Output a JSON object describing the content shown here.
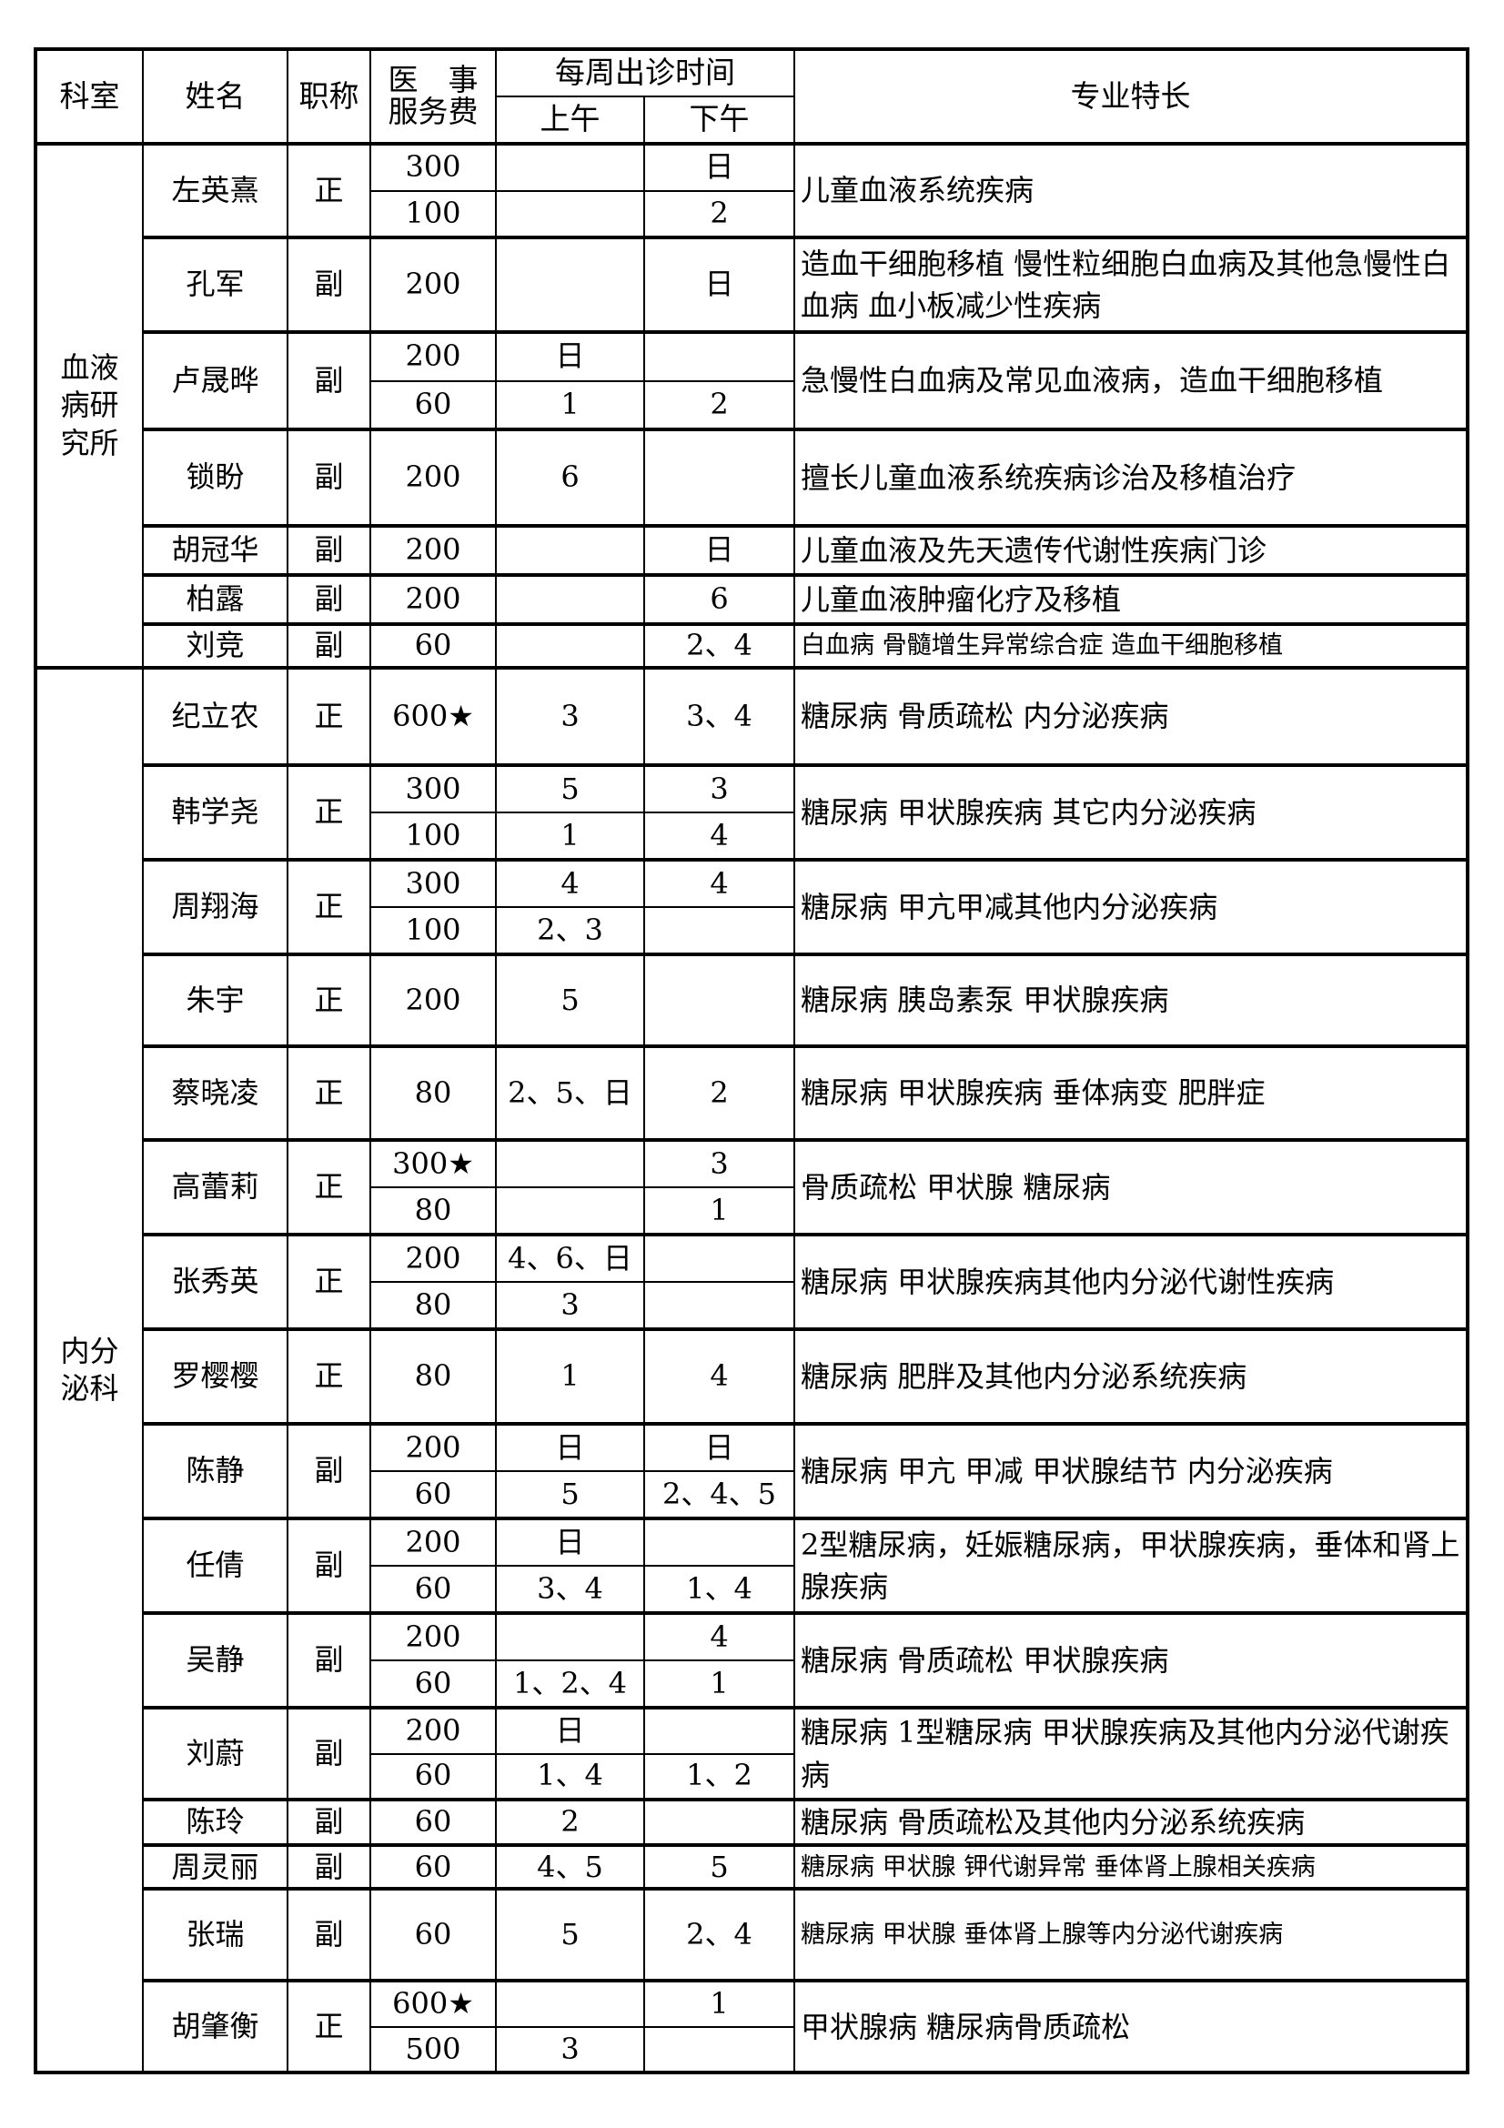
{
  "header": {
    "department": "科室",
    "name": "姓名",
    "title": "职称",
    "fee_line1": "医　事",
    "fee_line2": "服务费",
    "weekly_schedule": "每周出诊时间",
    "morning": "上午",
    "afternoon": "下午",
    "specialty": "专业特长"
  },
  "departments": [
    {
      "name": "血液病研究所",
      "doctors": [
        {
          "name": "左英熹",
          "title": "正",
          "sessions": [
            {
              "fee": "300",
              "am": "",
              "pm": "日"
            },
            {
              "fee": "100",
              "am": "",
              "pm": "2"
            }
          ],
          "specialty": "儿童血液系统疾病"
        },
        {
          "name": "孔军",
          "title": "副",
          "sessions": [
            {
              "fee": "200",
              "am": "",
              "pm": "日"
            }
          ],
          "specialty": "造血干细胞移植 慢性粒细胞白血病及其他急慢性白血病 血小板减少性疾病"
        },
        {
          "name": "卢晟晔",
          "title": "副",
          "sessions": [
            {
              "fee": "200",
              "am": "日",
              "pm": ""
            },
            {
              "fee": "60",
              "am": "1",
              "pm": "2"
            }
          ],
          "specialty": "急慢性白血病及常见血液病，造血干细胞移植"
        },
        {
          "name": "锁盼",
          "title": "副",
          "sessions": [
            {
              "fee": "200",
              "am": "6",
              "pm": ""
            }
          ],
          "specialty": "擅长儿童血液系统疾病诊治及移植治疗"
        },
        {
          "name": "胡冠华",
          "title": "副",
          "sessions": [
            {
              "fee": "200",
              "am": "",
              "pm": "日"
            }
          ],
          "specialty": "儿童血液及先天遗传代谢性疾病门诊"
        },
        {
          "name": "柏露",
          "title": "副",
          "sessions": [
            {
              "fee": "200",
              "am": "",
              "pm": "6"
            }
          ],
          "specialty": "儿童血液肿瘤化疗及移植"
        },
        {
          "name": "刘竞",
          "title": "副",
          "sessions": [
            {
              "fee": "60",
              "am": "",
              "pm": "2、4"
            }
          ],
          "specialty": "白血病 骨髓增生异常综合症 造血干细胞移植"
        }
      ]
    },
    {
      "name": "内分泌科",
      "doctors": [
        {
          "name": "纪立农",
          "title": "正",
          "sessions": [
            {
              "fee": "600★",
              "am": "3",
              "pm": "3、4"
            }
          ],
          "specialty": "糖尿病 骨质疏松 内分泌疾病"
        },
        {
          "name": "韩学尧",
          "title": "正",
          "sessions": [
            {
              "fee": "300",
              "am": "5",
              "pm": "3"
            },
            {
              "fee": "100",
              "am": "1",
              "pm": "4"
            }
          ],
          "specialty": "糖尿病 甲状腺疾病 其它内分泌疾病"
        },
        {
          "name": "周翔海",
          "title": "正",
          "sessions": [
            {
              "fee": "300",
              "am": "4",
              "pm": "4"
            },
            {
              "fee": "100",
              "am": "2、3",
              "pm": ""
            }
          ],
          "specialty": "糖尿病 甲亢甲减其他内分泌疾病"
        },
        {
          "name": "朱宇",
          "title": "正",
          "sessions": [
            {
              "fee": "200",
              "am": "5",
              "pm": ""
            }
          ],
          "specialty": "糖尿病 胰岛素泵 甲状腺疾病"
        },
        {
          "name": "蔡晓凌",
          "title": "正",
          "sessions": [
            {
              "fee": "80",
              "am": "2、5、日",
              "pm": "2"
            }
          ],
          "specialty": "糖尿病 甲状腺疾病 垂体病变 肥胖症"
        },
        {
          "name": "高蕾莉",
          "title": "正",
          "sessions": [
            {
              "fee": "300★",
              "am": "",
              "pm": "3"
            },
            {
              "fee": "80",
              "am": "",
              "pm": "1"
            }
          ],
          "specialty": "骨质疏松 甲状腺 糖尿病"
        },
        {
          "name": "张秀英",
          "title": "正",
          "sessions": [
            {
              "fee": "200",
              "am": "4、6、日",
              "pm": ""
            },
            {
              "fee": "80",
              "am": "3",
              "pm": ""
            }
          ],
          "specialty": "糖尿病 甲状腺疾病其他内分泌代谢性疾病"
        },
        {
          "name": "罗樱樱",
          "title": "正",
          "sessions": [
            {
              "fee": "80",
              "am": "1",
              "pm": "4"
            }
          ],
          "specialty": "糖尿病 肥胖及其他内分泌系统疾病"
        },
        {
          "name": "陈静",
          "title": "副",
          "sessions": [
            {
              "fee": "200",
              "am": "日",
              "pm": "日"
            },
            {
              "fee": "60",
              "am": "5",
              "pm": "2、4、5"
            }
          ],
          "specialty": "糖尿病 甲亢 甲减 甲状腺结节 内分泌疾病"
        },
        {
          "name": "任倩",
          "title": "副",
          "sessions": [
            {
              "fee": "200",
              "am": "日",
              "pm": ""
            },
            {
              "fee": "60",
              "am": "3、4",
              "pm": "1、4"
            }
          ],
          "specialty": "2型糖尿病，妊娠糖尿病，甲状腺疾病，垂体和肾上腺疾病"
        },
        {
          "name": "吴静",
          "title": "副",
          "sessions": [
            {
              "fee": "200",
              "am": "",
              "pm": "4"
            },
            {
              "fee": "60",
              "am": "1、2、4",
              "pm": "1"
            }
          ],
          "specialty": "糖尿病 骨质疏松 甲状腺疾病"
        },
        {
          "name": "刘蔚",
          "title": "副",
          "sessions": [
            {
              "fee": "200",
              "am": "日",
              "pm": ""
            },
            {
              "fee": "60",
              "am": "1、4",
              "pm": "1、2"
            }
          ],
          "specialty": "糖尿病 1型糖尿病 甲状腺疾病及其他内分泌代谢疾病"
        },
        {
          "name": "陈玲",
          "title": "副",
          "sessions": [
            {
              "fee": "60",
              "am": "2",
              "pm": ""
            }
          ],
          "specialty": "糖尿病 骨质疏松及其他内分泌系统疾病"
        },
        {
          "name": "周灵丽",
          "title": "副",
          "sessions": [
            {
              "fee": "60",
              "am": "4、5",
              "pm": "5"
            }
          ],
          "specialty": "糖尿病 甲状腺 钾代谢异常 垂体肾上腺相关疾病"
        },
        {
          "name": "张瑞",
          "title": "副",
          "sessions": [
            {
              "fee": "60",
              "am": "5",
              "pm": "2、4"
            }
          ],
          "specialty": "糖尿病 甲状腺 垂体肾上腺等内分泌代谢疾病"
        },
        {
          "name": "胡肇衡",
          "title": "正",
          "sessions": [
            {
              "fee": "600★",
              "am": "",
              "pm": "1"
            },
            {
              "fee": "500",
              "am": "3",
              "pm": ""
            }
          ],
          "specialty": "甲状腺病 糖尿病骨质疏松"
        }
      ]
    }
  ]
}
